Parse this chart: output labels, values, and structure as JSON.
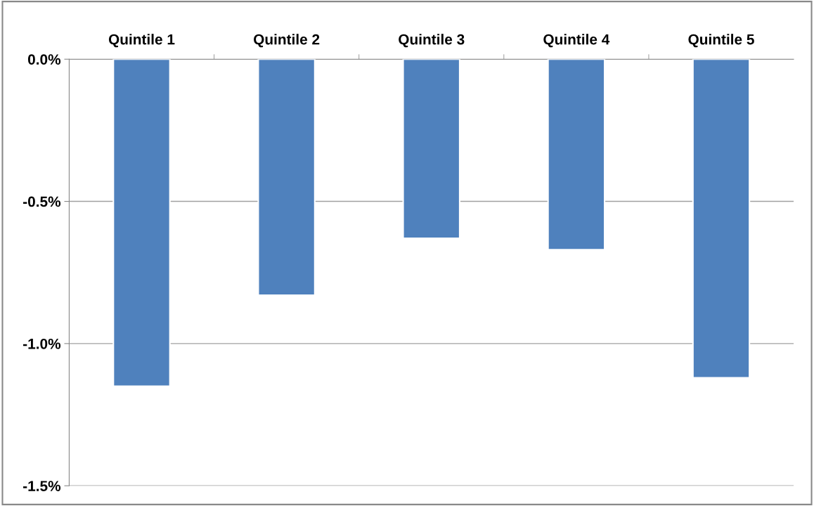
{
  "chart_data": {
    "type": "bar",
    "categories": [
      "Quintile 1",
      "Quintile 2",
      "Quintile 3",
      "Quintile 4",
      "Quintile 5"
    ],
    "values": [
      -1.15,
      -0.83,
      -0.63,
      -0.67,
      -1.12
    ],
    "color": "#4f81bd",
    "ylim": [
      -1.5,
      0
    ],
    "yticks": [
      {
        "value": -1.5,
        "label": "-1.5%"
      },
      {
        "value": -1.0,
        "label": "-1.0%"
      },
      {
        "value": -0.5,
        "label": "-0.5%"
      },
      {
        "value": 0,
        "label": "0.0%"
      }
    ],
    "grid": "y"
  }
}
